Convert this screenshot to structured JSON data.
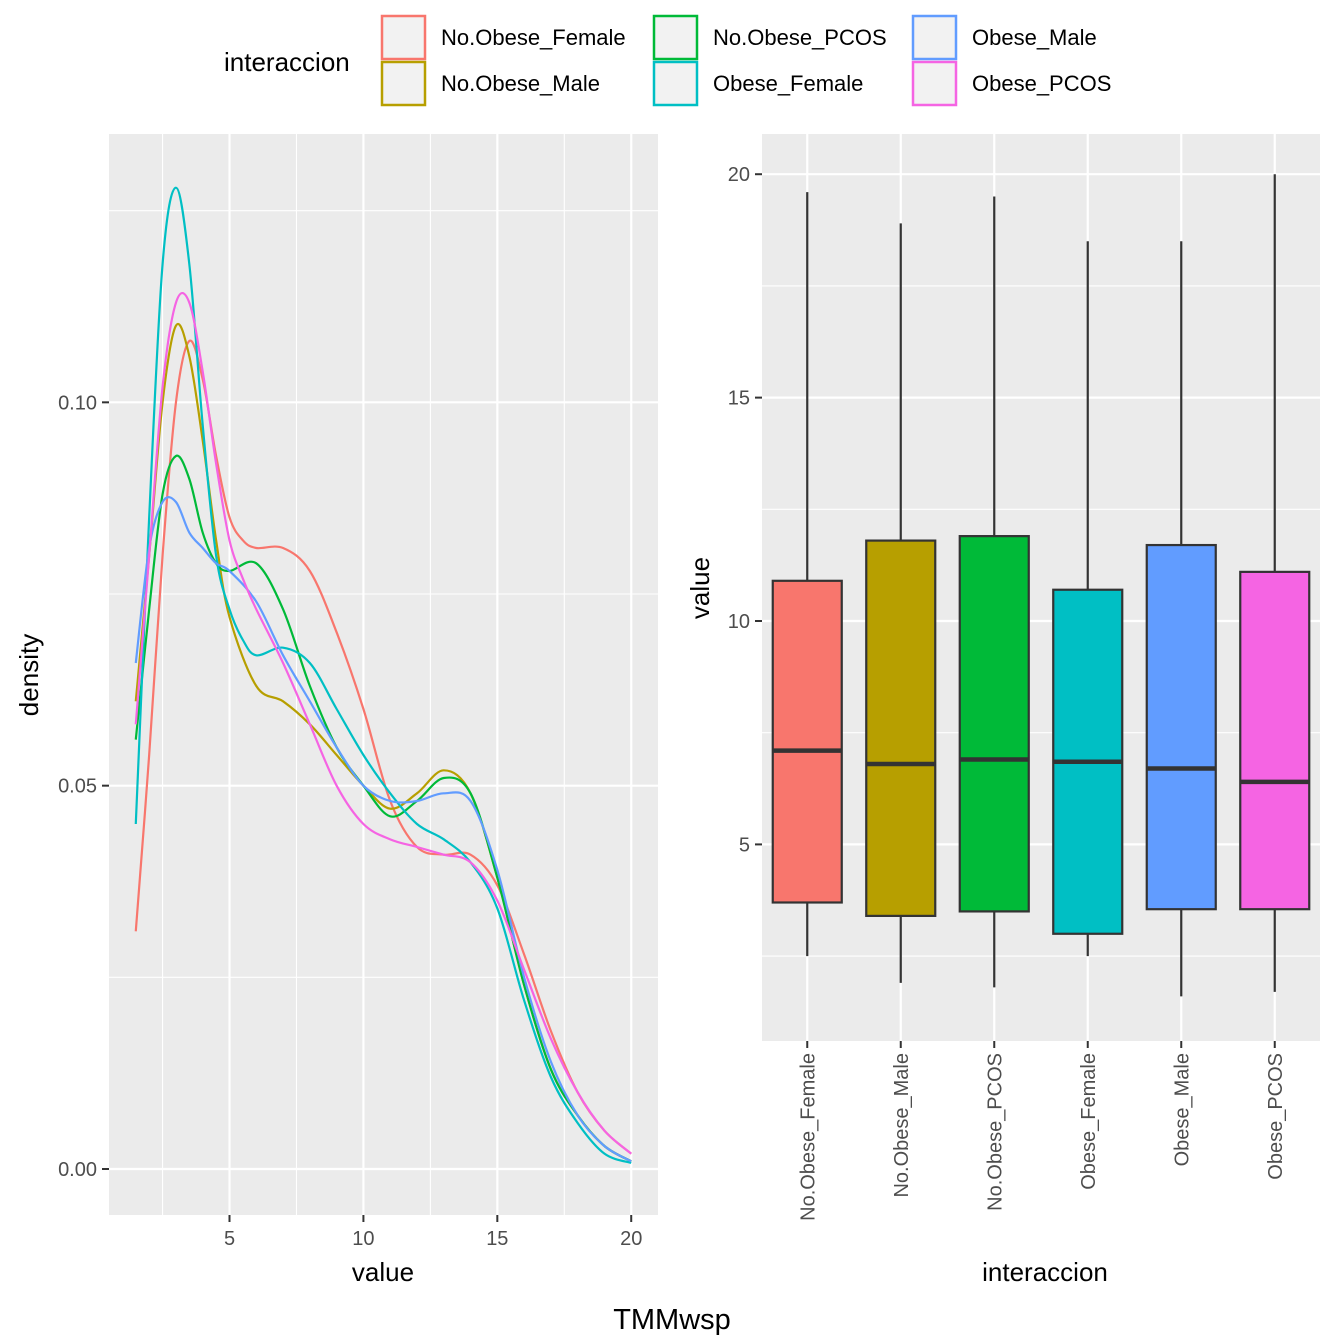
{
  "caption": "TMMwsp",
  "legend": {
    "title": "interaccion",
    "entries": [
      {
        "label": "No.Obese_Female",
        "color": "#F8766D"
      },
      {
        "label": "No.Obese_Male",
        "color": "#B79F00"
      },
      {
        "label": "No.Obese_PCOS",
        "color": "#00BA38"
      },
      {
        "label": "Obese_Female",
        "color": "#00BFC4"
      },
      {
        "label": "Obese_Male",
        "color": "#619CFF"
      },
      {
        "label": "Obese_PCOS",
        "color": "#F564E3"
      }
    ]
  },
  "chart_data": [
    {
      "type": "line",
      "subtype": "density",
      "xlabel": "value",
      "ylabel": "density",
      "xlim": [
        0.5,
        21
      ],
      "ylim": [
        -0.006,
        0.135
      ],
      "xticks": [
        5,
        10,
        15,
        20
      ],
      "yticks": [
        0.0,
        0.05,
        0.1
      ],
      "ytick_labels": [
        "0.00",
        "0.05",
        "0.10"
      ],
      "grid": true,
      "series": [
        {
          "name": "No.Obese_Female",
          "color": "#F8766D",
          "points": [
            [
              1.5,
              0.031
            ],
            [
              2.0,
              0.054
            ],
            [
              2.5,
              0.08
            ],
            [
              3.0,
              0.1
            ],
            [
              3.5,
              0.108
            ],
            [
              4.0,
              0.103
            ],
            [
              4.5,
              0.093
            ],
            [
              5.0,
              0.085
            ],
            [
              5.5,
              0.082
            ],
            [
              6.0,
              0.081
            ],
            [
              7.0,
              0.081
            ],
            [
              8.0,
              0.078
            ],
            [
              9.0,
              0.07
            ],
            [
              10.0,
              0.06
            ],
            [
              11.0,
              0.048
            ],
            [
              12.0,
              0.042
            ],
            [
              13.0,
              0.041
            ],
            [
              14.0,
              0.041
            ],
            [
              15.0,
              0.037
            ],
            [
              16.0,
              0.028
            ],
            [
              17.0,
              0.018
            ],
            [
              18.0,
              0.01
            ],
            [
              19.0,
              0.005
            ],
            [
              20.0,
              0.002
            ]
          ]
        },
        {
          "name": "No.Obese_Male",
          "color": "#B79F00",
          "points": [
            [
              1.5,
              0.061
            ],
            [
              2.0,
              0.08
            ],
            [
              2.5,
              0.1
            ],
            [
              3.0,
              0.11
            ],
            [
              3.5,
              0.106
            ],
            [
              4.0,
              0.095
            ],
            [
              4.5,
              0.082
            ],
            [
              5.0,
              0.072
            ],
            [
              6.0,
              0.063
            ],
            [
              7.0,
              0.061
            ],
            [
              8.0,
              0.058
            ],
            [
              9.0,
              0.054
            ],
            [
              10.0,
              0.05
            ],
            [
              11.0,
              0.047
            ],
            [
              12.0,
              0.049
            ],
            [
              13.0,
              0.052
            ],
            [
              14.0,
              0.049
            ],
            [
              15.0,
              0.038
            ],
            [
              16.0,
              0.024
            ],
            [
              17.0,
              0.013
            ],
            [
              18.0,
              0.007
            ],
            [
              19.0,
              0.003
            ],
            [
              20.0,
              0.001
            ]
          ]
        },
        {
          "name": "No.Obese_PCOS",
          "color": "#00BA38",
          "points": [
            [
              1.5,
              0.056
            ],
            [
              2.0,
              0.073
            ],
            [
              2.5,
              0.088
            ],
            [
              3.0,
              0.093
            ],
            [
              3.5,
              0.09
            ],
            [
              4.0,
              0.083
            ],
            [
              4.5,
              0.079
            ],
            [
              5.0,
              0.078
            ],
            [
              6.0,
              0.079
            ],
            [
              7.0,
              0.073
            ],
            [
              8.0,
              0.063
            ],
            [
              9.0,
              0.055
            ],
            [
              10.0,
              0.05
            ],
            [
              11.0,
              0.046
            ],
            [
              12.0,
              0.048
            ],
            [
              13.0,
              0.051
            ],
            [
              14.0,
              0.049
            ],
            [
              15.0,
              0.038
            ],
            [
              16.0,
              0.024
            ],
            [
              17.0,
              0.013
            ],
            [
              18.0,
              0.007
            ],
            [
              19.0,
              0.003
            ],
            [
              20.0,
              0.001
            ]
          ]
        },
        {
          "name": "Obese_Female",
          "color": "#00BFC4",
          "points": [
            [
              1.5,
              0.045
            ],
            [
              2.0,
              0.085
            ],
            [
              2.5,
              0.118
            ],
            [
              3.0,
              0.128
            ],
            [
              3.5,
              0.118
            ],
            [
              4.0,
              0.097
            ],
            [
              4.5,
              0.08
            ],
            [
              5.0,
              0.073
            ],
            [
              5.5,
              0.069
            ],
            [
              6.0,
              0.067
            ],
            [
              7.0,
              0.068
            ],
            [
              8.0,
              0.066
            ],
            [
              9.0,
              0.06
            ],
            [
              10.0,
              0.054
            ],
            [
              11.0,
              0.049
            ],
            [
              12.0,
              0.045
            ],
            [
              13.0,
              0.043
            ],
            [
              14.0,
              0.04
            ],
            [
              15.0,
              0.034
            ],
            [
              16.0,
              0.022
            ],
            [
              17.0,
              0.012
            ],
            [
              18.0,
              0.006
            ],
            [
              19.0,
              0.002
            ],
            [
              20.0,
              0.0008
            ]
          ]
        },
        {
          "name": "Obese_Male",
          "color": "#619CFF",
          "points": [
            [
              1.5,
              0.066
            ],
            [
              2.0,
              0.081
            ],
            [
              2.5,
              0.087
            ],
            [
              3.0,
              0.087
            ],
            [
              3.5,
              0.083
            ],
            [
              4.0,
              0.081
            ],
            [
              4.5,
              0.079
            ],
            [
              5.0,
              0.078
            ],
            [
              6.0,
              0.074
            ],
            [
              7.0,
              0.067
            ],
            [
              8.0,
              0.061
            ],
            [
              9.0,
              0.055
            ],
            [
              10.0,
              0.05
            ],
            [
              11.0,
              0.048
            ],
            [
              12.0,
              0.048
            ],
            [
              13.0,
              0.049
            ],
            [
              14.0,
              0.048
            ],
            [
              15.0,
              0.039
            ],
            [
              16.0,
              0.025
            ],
            [
              17.0,
              0.014
            ],
            [
              18.0,
              0.007
            ],
            [
              19.0,
              0.003
            ],
            [
              20.0,
              0.001
            ]
          ]
        },
        {
          "name": "Obese_PCOS",
          "color": "#F564E3",
          "points": [
            [
              1.5,
              0.058
            ],
            [
              2.0,
              0.08
            ],
            [
              2.5,
              0.102
            ],
            [
              3.0,
              0.113
            ],
            [
              3.5,
              0.113
            ],
            [
              4.0,
              0.104
            ],
            [
              4.5,
              0.092
            ],
            [
              5.0,
              0.082
            ],
            [
              5.5,
              0.077
            ],
            [
              6.0,
              0.073
            ],
            [
              7.0,
              0.066
            ],
            [
              8.0,
              0.058
            ],
            [
              9.0,
              0.05
            ],
            [
              10.0,
              0.045
            ],
            [
              11.0,
              0.043
            ],
            [
              12.0,
              0.042
            ],
            [
              13.0,
              0.041
            ],
            [
              14.0,
              0.04
            ],
            [
              15.0,
              0.035
            ],
            [
              16.0,
              0.026
            ],
            [
              17.0,
              0.017
            ],
            [
              18.0,
              0.01
            ],
            [
              19.0,
              0.005
            ],
            [
              20.0,
              0.002
            ]
          ]
        }
      ]
    },
    {
      "type": "boxplot",
      "xlabel": "interaccion",
      "ylabel": "value",
      "ylim": [
        0.6,
        20.9
      ],
      "yticks": [
        5,
        10,
        15,
        20
      ],
      "grid": true,
      "categories": [
        "No.Obese_Female",
        "No.Obese_Male",
        "No.Obese_PCOS",
        "Obese_Female",
        "Obese_Male",
        "Obese_PCOS"
      ],
      "boxes": [
        {
          "name": "No.Obese_Female",
          "color": "#F8766D",
          "min": 2.5,
          "q1": 3.7,
          "median": 7.1,
          "q3": 10.9,
          "max": 19.6
        },
        {
          "name": "No.Obese_Male",
          "color": "#B79F00",
          "min": 1.9,
          "q1": 3.4,
          "median": 6.8,
          "q3": 11.8,
          "max": 18.9
        },
        {
          "name": "No.Obese_PCOS",
          "color": "#00BA38",
          "min": 1.8,
          "q1": 3.5,
          "median": 6.9,
          "q3": 11.9,
          "max": 19.5
        },
        {
          "name": "Obese_Female",
          "color": "#00BFC4",
          "min": 2.5,
          "q1": 3.0,
          "median": 6.85,
          "q3": 10.7,
          "max": 18.5
        },
        {
          "name": "Obese_Male",
          "color": "#619CFF",
          "min": 1.6,
          "q1": 3.55,
          "median": 6.7,
          "q3": 11.7,
          "max": 18.5
        },
        {
          "name": "Obese_PCOS",
          "color": "#F564E3",
          "min": 1.7,
          "q1": 3.55,
          "median": 6.4,
          "q3": 11.1,
          "max": 20.0
        }
      ]
    }
  ]
}
